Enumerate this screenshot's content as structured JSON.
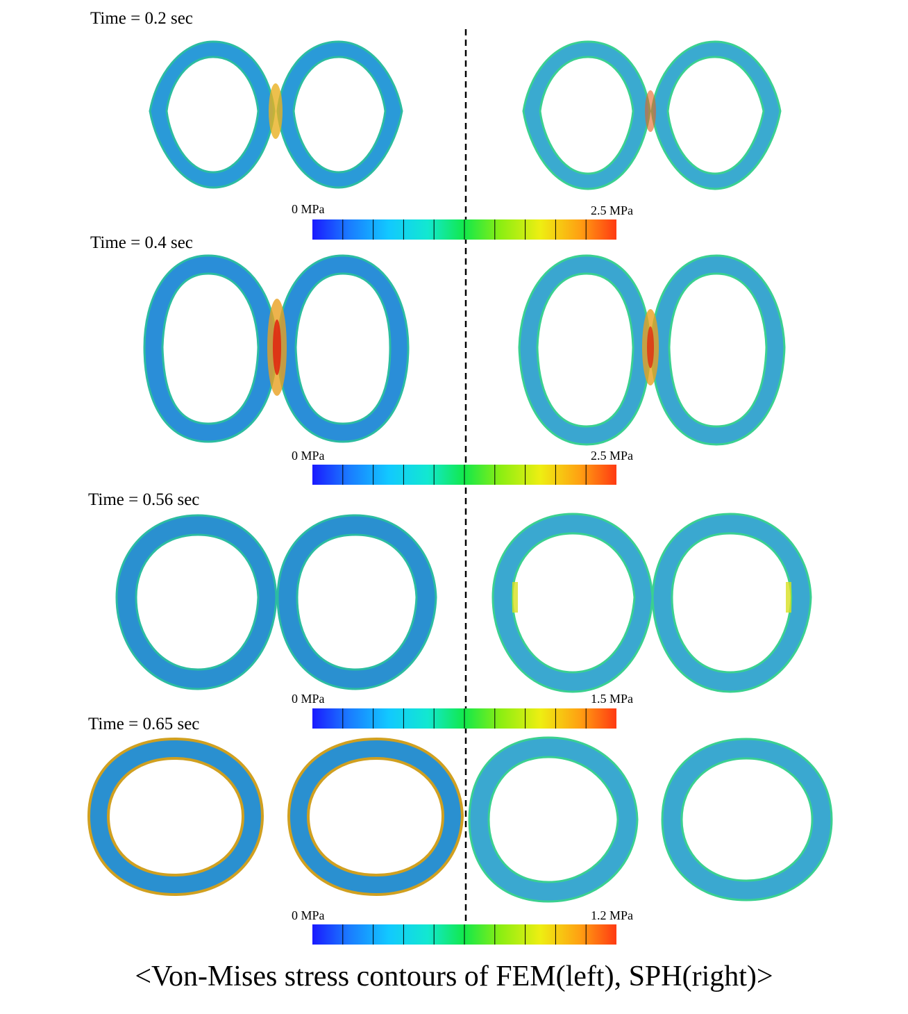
{
  "frames": [
    {
      "time_label": "Time = 0.2 sec",
      "scale_min": "0 MPa",
      "scale_max": "2.5 MPa"
    },
    {
      "time_label": "Time = 0.4 sec",
      "scale_min": "0 MPa",
      "scale_max": "2.5 MPa"
    },
    {
      "time_label": "Time = 0.56 sec",
      "scale_min": "0 MPa",
      "scale_max": "1.5 MPa"
    },
    {
      "time_label": "Time = 0.65 sec",
      "scale_min": "0 MPa",
      "scale_max": "1.2 MPa"
    }
  ],
  "caption": "<Von-Mises stress contours of FEM(left), SPH(right)>",
  "colormap": [
    "#1a1aff",
    "#1a7bff",
    "#12b9ff",
    "#12e0e0",
    "#1ff0b0",
    "#12e84a",
    "#66ee1a",
    "#b8ee12",
    "#eeee12",
    "#ffb012",
    "#ff5a12"
  ],
  "colors": {
    "ring_base": "#2aa4d8",
    "ring_edge": "#32c8a6",
    "high_stress": "#e8441a",
    "low_stress": "#1f3fd0"
  }
}
